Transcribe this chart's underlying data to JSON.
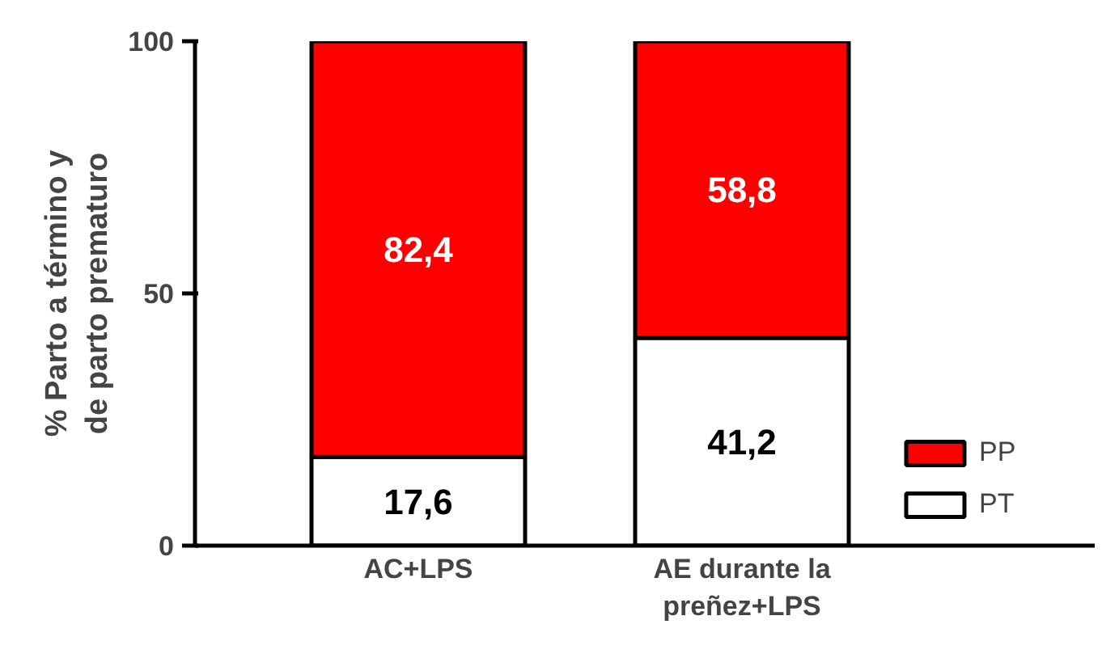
{
  "chart_data": {
    "type": "bar",
    "stacked": true,
    "ylabel": "% Parto a término y\nde parto prematuro",
    "categories": [
      "AC+LPS",
      "AE durante la\npreñez+LPS"
    ],
    "series": [
      {
        "name": "PT",
        "color": "#ffffff",
        "values": [
          17.6,
          41.2
        ],
        "value_labels": [
          "17,6",
          "41,2"
        ]
      },
      {
        "name": "PP",
        "color": "#ff0000",
        "values": [
          82.4,
          58.8
        ],
        "value_labels": [
          "82,4",
          "58,8"
        ]
      }
    ],
    "ylim": [
      0,
      100
    ],
    "yticks": [
      0,
      50,
      100
    ],
    "grid": false,
    "legend": "right"
  }
}
